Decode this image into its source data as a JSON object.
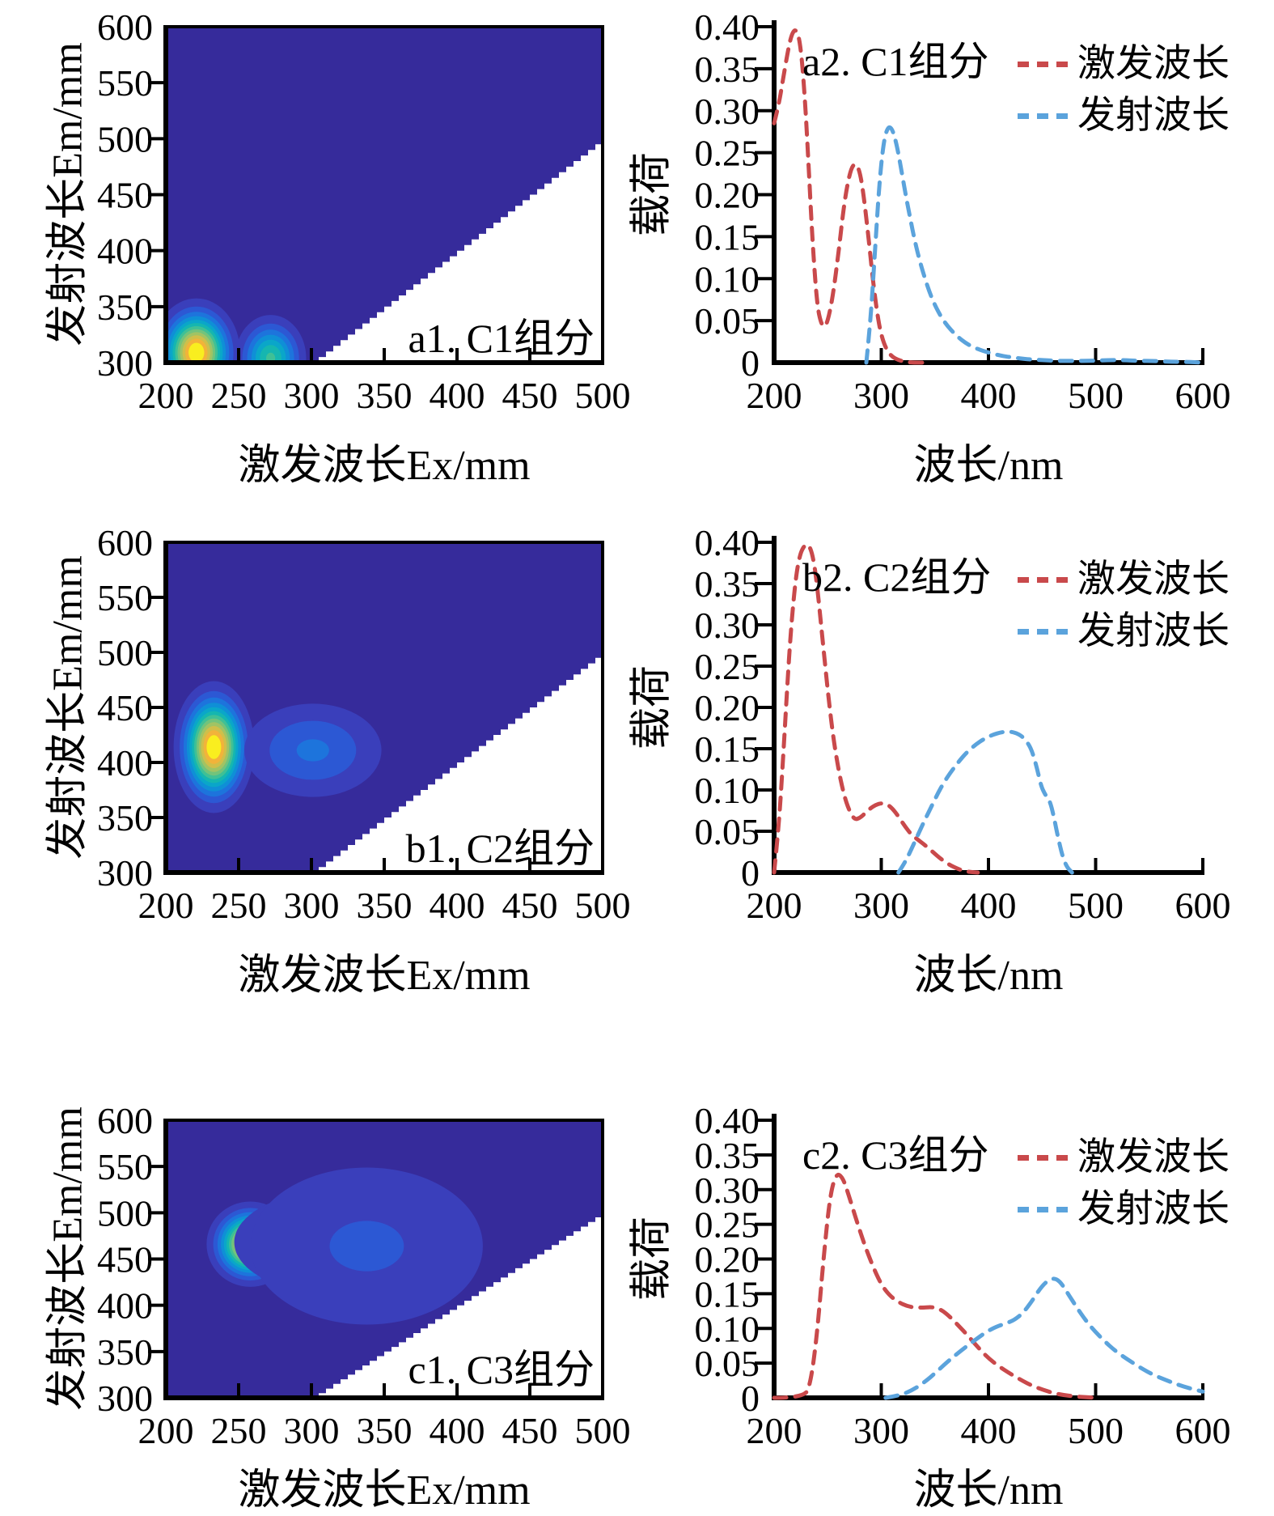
{
  "legend": {
    "excitation_label": "激发波长",
    "emission_label": "发射波长"
  },
  "colors": {
    "excitation_line": "#c9494b",
    "emission_line": "#5ba3dc",
    "contour_background": "#362b9b",
    "contour_palette": [
      "#3a3fbb",
      "#2c58d4",
      "#1d74dc",
      "#0f8fd6",
      "#0aa6c9",
      "#15b6b0",
      "#3fc096",
      "#72c37c",
      "#a1c364",
      "#cfbf4a",
      "#f2b33a",
      "#f9ee1f"
    ],
    "mask": "#ffffff",
    "axis": "#000000"
  },
  "chart_data": [
    {
      "id": "a1",
      "type": "heatmap",
      "title": "a1. C1组分",
      "xlabel": "激发波长Ex/mm",
      "ylabel": "发射波长Em/mm",
      "xlim": [
        200,
        500
      ],
      "ylim": [
        300,
        600
      ],
      "xticks": [
        200,
        250,
        300,
        350,
        400,
        450,
        500
      ],
      "yticks": [
        300,
        350,
        400,
        450,
        500,
        550,
        600
      ],
      "mask": "white below diagonal Em=Ex from (300,300) to (500,500)",
      "peaks": [
        {
          "ex": 221,
          "em": 309,
          "amp": 1.0,
          "sx": 13,
          "sy": 21
        },
        {
          "ex": 272,
          "em": 304,
          "amp": 0.55,
          "sx": 12,
          "sy": 19
        }
      ]
    },
    {
      "id": "a2",
      "type": "line",
      "title": "a2. C1组分",
      "xlabel": "波长/nm",
      "ylabel": "载荷",
      "xlim": [
        200,
        600
      ],
      "ylim": [
        0,
        0.4
      ],
      "xticks": [
        200,
        300,
        400,
        500,
        600
      ],
      "yticks": [
        0,
        0.05,
        0.1,
        0.15,
        0.2,
        0.25,
        0.3,
        0.35,
        0.4
      ],
      "legend_position": "top-right",
      "grid": false,
      "line_style": "dashed",
      "series": [
        {
          "name": "激发波长",
          "color": "#c9494b",
          "x": [
            200,
            204,
            208,
            212,
            216,
            220,
            224,
            228,
            232,
            236,
            240,
            244,
            248,
            252,
            256,
            260,
            264,
            268,
            272,
            276,
            280,
            284,
            288,
            292,
            296,
            300,
            305,
            310,
            316,
            322,
            330,
            340
          ],
          "y": [
            0.285,
            0.305,
            0.335,
            0.365,
            0.39,
            0.398,
            0.385,
            0.33,
            0.24,
            0.14,
            0.07,
            0.045,
            0.042,
            0.06,
            0.09,
            0.13,
            0.175,
            0.21,
            0.232,
            0.238,
            0.228,
            0.195,
            0.15,
            0.1,
            0.06,
            0.032,
            0.015,
            0.007,
            0.003,
            0.001,
            0,
            0
          ]
        },
        {
          "name": "发射波长",
          "color": "#5ba3dc",
          "x": [
            286,
            290,
            294,
            298,
            302,
            306,
            310,
            314,
            318,
            322,
            326,
            330,
            335,
            340,
            346,
            352,
            360,
            370,
            380,
            390,
            400,
            412,
            424,
            436,
            450,
            465,
            480,
            495,
            510,
            525,
            540,
            555,
            570,
            585,
            600
          ],
          "y": [
            0,
            0.05,
            0.13,
            0.21,
            0.262,
            0.281,
            0.279,
            0.262,
            0.235,
            0.205,
            0.178,
            0.152,
            0.125,
            0.103,
            0.08,
            0.063,
            0.046,
            0.032,
            0.022,
            0.016,
            0.012,
            0.008,
            0.006,
            0.004,
            0.003,
            0.002,
            0.002,
            0.002,
            0.003,
            0.003,
            0.002,
            0.002,
            0.001,
            0.001,
            0
          ]
        }
      ]
    },
    {
      "id": "b1",
      "type": "heatmap",
      "title": "b1. C2组分",
      "xlabel": "激发波长Ex/mm",
      "ylabel": "发射波长Em/mm",
      "xlim": [
        200,
        500
      ],
      "ylim": [
        300,
        600
      ],
      "xticks": [
        200,
        250,
        300,
        350,
        400,
        450,
        500
      ],
      "yticks": [
        300,
        350,
        400,
        450,
        500,
        550,
        600
      ],
      "mask": "white below diagonal Em=Ex from (300,300) to (500,500)",
      "peaks": [
        {
          "ex": 233,
          "em": 414,
          "amp": 1.0,
          "sx": 12,
          "sy": 26
        },
        {
          "ex": 301,
          "em": 411,
          "amp": 0.24,
          "sx": 30,
          "sy": 27
        }
      ]
    },
    {
      "id": "b2",
      "type": "line",
      "title": "b2. C2组分",
      "xlabel": "波长/nm",
      "ylabel": "载荷",
      "xlim": [
        200,
        600
      ],
      "ylim": [
        0,
        0.4
      ],
      "xticks": [
        200,
        300,
        400,
        500,
        600
      ],
      "yticks": [
        0,
        0.05,
        0.1,
        0.15,
        0.2,
        0.25,
        0.3,
        0.35,
        0.4
      ],
      "legend_position": "top-right",
      "grid": false,
      "line_style": "dashed",
      "series": [
        {
          "name": "激发波长",
          "color": "#c9494b",
          "x": [
            200,
            204,
            208,
            212,
            216,
            220,
            224,
            228,
            232,
            236,
            240,
            245,
            250,
            255,
            260,
            265,
            270,
            275,
            280,
            285,
            290,
            295,
            300,
            305,
            310,
            316,
            322,
            328,
            334,
            340,
            348,
            356,
            364,
            372,
            380,
            390
          ],
          "y": [
            0,
            0.05,
            0.13,
            0.22,
            0.3,
            0.355,
            0.385,
            0.396,
            0.398,
            0.385,
            0.35,
            0.285,
            0.22,
            0.165,
            0.125,
            0.095,
            0.075,
            0.064,
            0.066,
            0.072,
            0.078,
            0.082,
            0.084,
            0.083,
            0.078,
            0.068,
            0.056,
            0.046,
            0.04,
            0.034,
            0.025,
            0.016,
            0.009,
            0.004,
            0.001,
            0
          ]
        },
        {
          "name": "发射波长",
          "color": "#5ba3dc",
          "x": [
            316,
            322,
            328,
            334,
            340,
            346,
            352,
            358,
            365,
            372,
            380,
            388,
            396,
            404,
            412,
            420,
            428,
            434,
            440,
            445,
            449,
            453,
            457,
            461,
            465,
            469,
            473,
            478
          ],
          "y": [
            0,
            0.012,
            0.028,
            0.045,
            0.062,
            0.078,
            0.094,
            0.108,
            0.122,
            0.134,
            0.146,
            0.155,
            0.162,
            0.167,
            0.17,
            0.171,
            0.168,
            0.162,
            0.15,
            0.128,
            0.105,
            0.094,
            0.088,
            0.068,
            0.042,
            0.02,
            0.007,
            0
          ]
        }
      ]
    },
    {
      "id": "c1",
      "type": "heatmap",
      "title": "c1. C3组分",
      "xlabel": "激发波长Ex/mm",
      "ylabel": "发射波长Em/mm",
      "xlim": [
        200,
        500
      ],
      "ylim": [
        300,
        600
      ],
      "xticks": [
        200,
        250,
        300,
        350,
        400,
        450,
        500
      ],
      "yticks": [
        300,
        350,
        400,
        450,
        500,
        550,
        600
      ],
      "mask": "white below diagonal Em=Ex from (300,300) to (500,500)",
      "peaks": [
        {
          "ex": 258,
          "em": 466,
          "amp": 1.0,
          "sx": 13,
          "sy": 20
        },
        {
          "ex": 316,
          "em": 468,
          "amp": 0.44,
          "sx": 36,
          "sy": 29
        },
        {
          "ex": 338,
          "em": 464,
          "amp": 0.16,
          "sx": 62,
          "sy": 66
        }
      ]
    },
    {
      "id": "c2",
      "type": "line",
      "title": "c2. C3组分",
      "xlabel": "波长/nm",
      "ylabel": "载荷",
      "xlim": [
        200,
        600
      ],
      "ylim": [
        0,
        0.4
      ],
      "xticks": [
        200,
        300,
        400,
        500,
        600
      ],
      "yticks": [
        0,
        0.05,
        0.1,
        0.15,
        0.2,
        0.25,
        0.3,
        0.35,
        0.4
      ],
      "legend_position": "top-right",
      "grid": false,
      "line_style": "dashed",
      "series": [
        {
          "name": "激发波长",
          "color": "#c9494b",
          "x": [
            200,
            228,
            234,
            240,
            246,
            252,
            258,
            264,
            270,
            277,
            284,
            292,
            300,
            308,
            316,
            324,
            332,
            340,
            348,
            356,
            364,
            372,
            380,
            390,
            400,
            410,
            420,
            430,
            440,
            450,
            460,
            470,
            480,
            490,
            500
          ],
          "y": [
            0,
            0,
            0.02,
            0.09,
            0.2,
            0.29,
            0.324,
            0.318,
            0.29,
            0.255,
            0.222,
            0.19,
            0.163,
            0.147,
            0.138,
            0.132,
            0.13,
            0.13,
            0.131,
            0.127,
            0.117,
            0.104,
            0.091,
            0.073,
            0.057,
            0.045,
            0.035,
            0.026,
            0.018,
            0.012,
            0.007,
            0.004,
            0.002,
            0.001,
            0
          ]
        },
        {
          "name": "发射波长",
          "color": "#5ba3dc",
          "x": [
            304,
            316,
            328,
            340,
            352,
            364,
            376,
            388,
            398,
            408,
            416,
            424,
            432,
            440,
            447,
            453,
            459,
            464,
            469,
            475,
            482,
            490,
            498,
            508,
            518,
            530,
            542,
            554,
            568,
            582,
            600
          ],
          "y": [
            0,
            0.003,
            0.01,
            0.022,
            0.038,
            0.055,
            0.07,
            0.084,
            0.095,
            0.103,
            0.107,
            0.112,
            0.122,
            0.138,
            0.155,
            0.166,
            0.172,
            0.171,
            0.163,
            0.148,
            0.131,
            0.113,
            0.098,
            0.082,
            0.068,
            0.055,
            0.043,
            0.033,
            0.024,
            0.016,
            0.009
          ]
        }
      ]
    }
  ]
}
